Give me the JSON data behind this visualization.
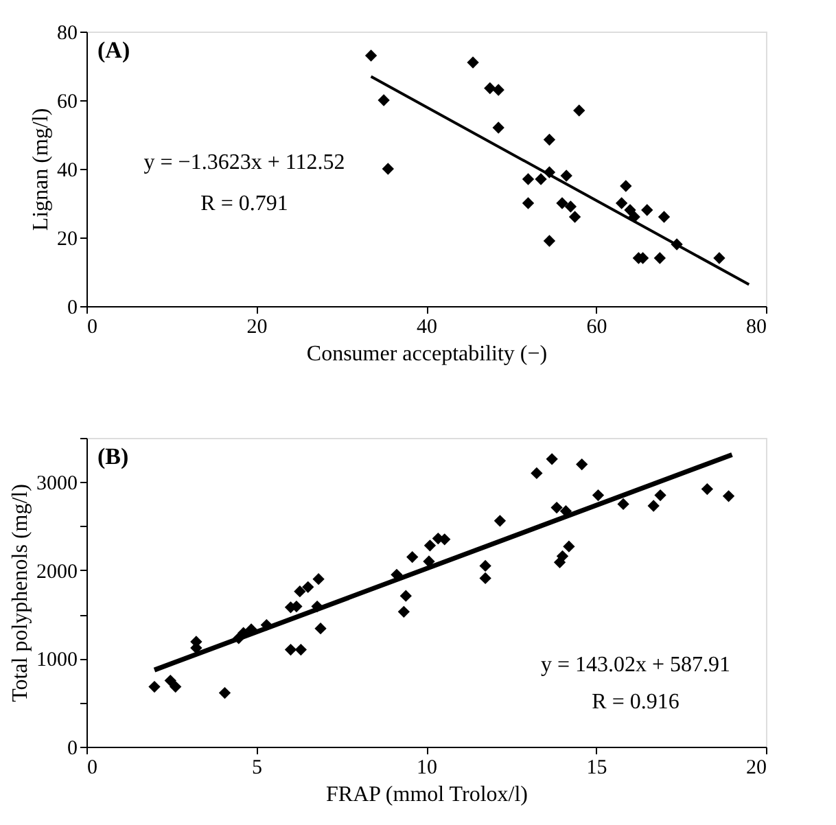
{
  "chart_data": [
    {
      "type": "scatter",
      "xlabel": "Consumer acceptability (−)",
      "ylabel": "Lignan (mg/l)",
      "marker": "diamond",
      "grid": false,
      "annotations": [
        "(A)",
        "y = −1.3623x + 112.52",
        "R = 0.791"
      ],
      "xlim": [
        0,
        80
      ],
      "xticks": [
        0,
        20,
        40,
        60,
        80
      ],
      "ylim": [
        0,
        80
      ],
      "yticks": [
        0,
        20,
        40,
        60,
        80
      ],
      "series": [
        {
          "color": "#000000",
          "x": [
            33.5,
            35,
            35.5,
            45.5,
            47.5,
            48.5,
            48.5,
            52,
            52,
            53.5,
            54.5,
            54.5,
            54.5,
            56,
            56.5,
            57,
            57.5,
            58,
            63.5,
            63,
            64,
            64.5,
            65,
            65.5,
            66,
            67.5,
            68,
            69.5,
            74.5
          ],
          "values": [
            73,
            60,
            40,
            71,
            63.5,
            63,
            52,
            37,
            30,
            37,
            48.5,
            39,
            19,
            30,
            38,
            29,
            26,
            57,
            35,
            30,
            28,
            26,
            14,
            14,
            28,
            14,
            26,
            18,
            14
          ]
        },
        {
          "type": "line",
          "marker": "none",
          "color": "#000000",
          "x": [
            33.5,
            78
          ],
          "values": [
            66.9,
            6.3
          ]
        }
      ]
    },
    {
      "type": "scatter",
      "xlabel": "FRAP (mmol Trolox/l)",
      "ylabel": "Total polyphenols (mg/l)",
      "marker": "diamond",
      "grid": false,
      "annotations": [
        "(B)",
        "y = 143.02x + 587.91",
        "R = 0.916"
      ],
      "xlim": [
        0,
        20
      ],
      "xticks": [
        0,
        5,
        10,
        15,
        20
      ],
      "ylim": [
        0,
        3500
      ],
      "yticks": [
        0,
        {
          "value": 500,
          "label": null
        },
        1000,
        {
          "value": 1500,
          "label": null
        },
        2000,
        {
          "value": 2500,
          "label": null
        },
        3000,
        {
          "value": 3500,
          "label": null
        }
      ],
      "series": [
        {
          "color": "#000000",
          "x": [
            2.0,
            2.47,
            2.62,
            3.23,
            3.23,
            4.07,
            4.48,
            4.62,
            4.85,
            5.3,
            6.01,
            6.18,
            6.28,
            6.52,
            6.83,
            6.79,
            6.89,
            6.01,
            6.31,
            9.13,
            9.4,
            9.34,
            9.59,
            10.08,
            10.11,
            10.35,
            10.54,
            11.74,
            11.74,
            12.17,
            13.25,
            13.7,
            13.84,
            14.11,
            13.93,
            14.01,
            14.2,
            14.58,
            15.06,
            15.8,
            16.69,
            16.89,
            18.27,
            18.9
          ],
          "values": [
            680,
            750,
            680,
            1190,
            1120,
            610,
            1230,
            1290,
            1330,
            1380,
            1580,
            1590,
            1760,
            1810,
            1900,
            1590,
            1340,
            1100,
            1100,
            1950,
            1710,
            1530,
            2150,
            2100,
            2280,
            2360,
            2350,
            2050,
            1910,
            2560,
            3100,
            3260,
            2710,
            2670,
            2090,
            2160,
            2270,
            3200,
            2850,
            2750,
            2730,
            2850,
            2920,
            2840
          ]
        },
        {
          "type": "line",
          "marker": "none",
          "color": "#000000",
          "x": [
            2,
            19
          ],
          "values": [
            870,
            3310
          ]
        }
      ]
    }
  ]
}
